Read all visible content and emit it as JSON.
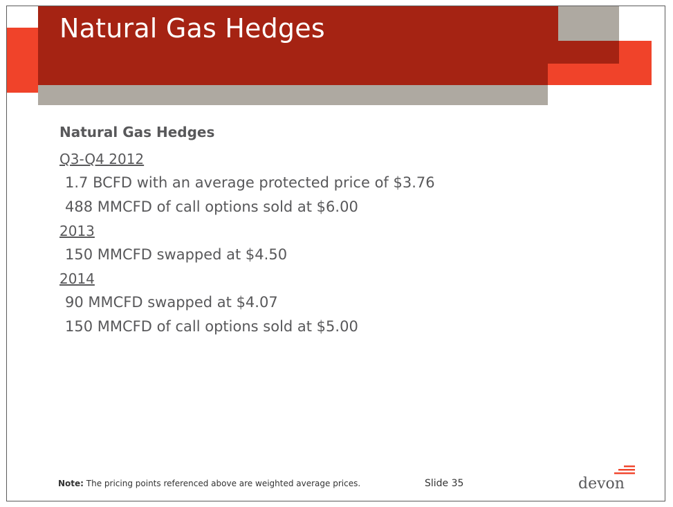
{
  "colors": {
    "title_red": "#a52313",
    "accent_orange": "#f0432a",
    "band_gray": "#aea9a1",
    "text_gray": "#58585a"
  },
  "slide": {
    "title": "Natural Gas Hedges",
    "section_heading": "Natural Gas Hedges",
    "groups": [
      {
        "period": "Q3-Q4 2012",
        "items": [
          "1.7 BCFD with an average protected price of $3.76",
          "488 MMCFD of call options sold at $6.00"
        ]
      },
      {
        "period": "2013",
        "items": [
          "150 MMCFD swapped at $4.50"
        ]
      },
      {
        "period": "2014",
        "items": [
          "90 MMCFD swapped at $4.07",
          "150 MMCFD of call options sold at $5.00"
        ]
      }
    ]
  },
  "footer": {
    "note_label": "Note:",
    "note_text": " The pricing points referenced above are weighted average prices.",
    "slide_number": "Slide 35",
    "logo_text": "devon",
    "logo_icon": "devon-stripes-icon"
  }
}
